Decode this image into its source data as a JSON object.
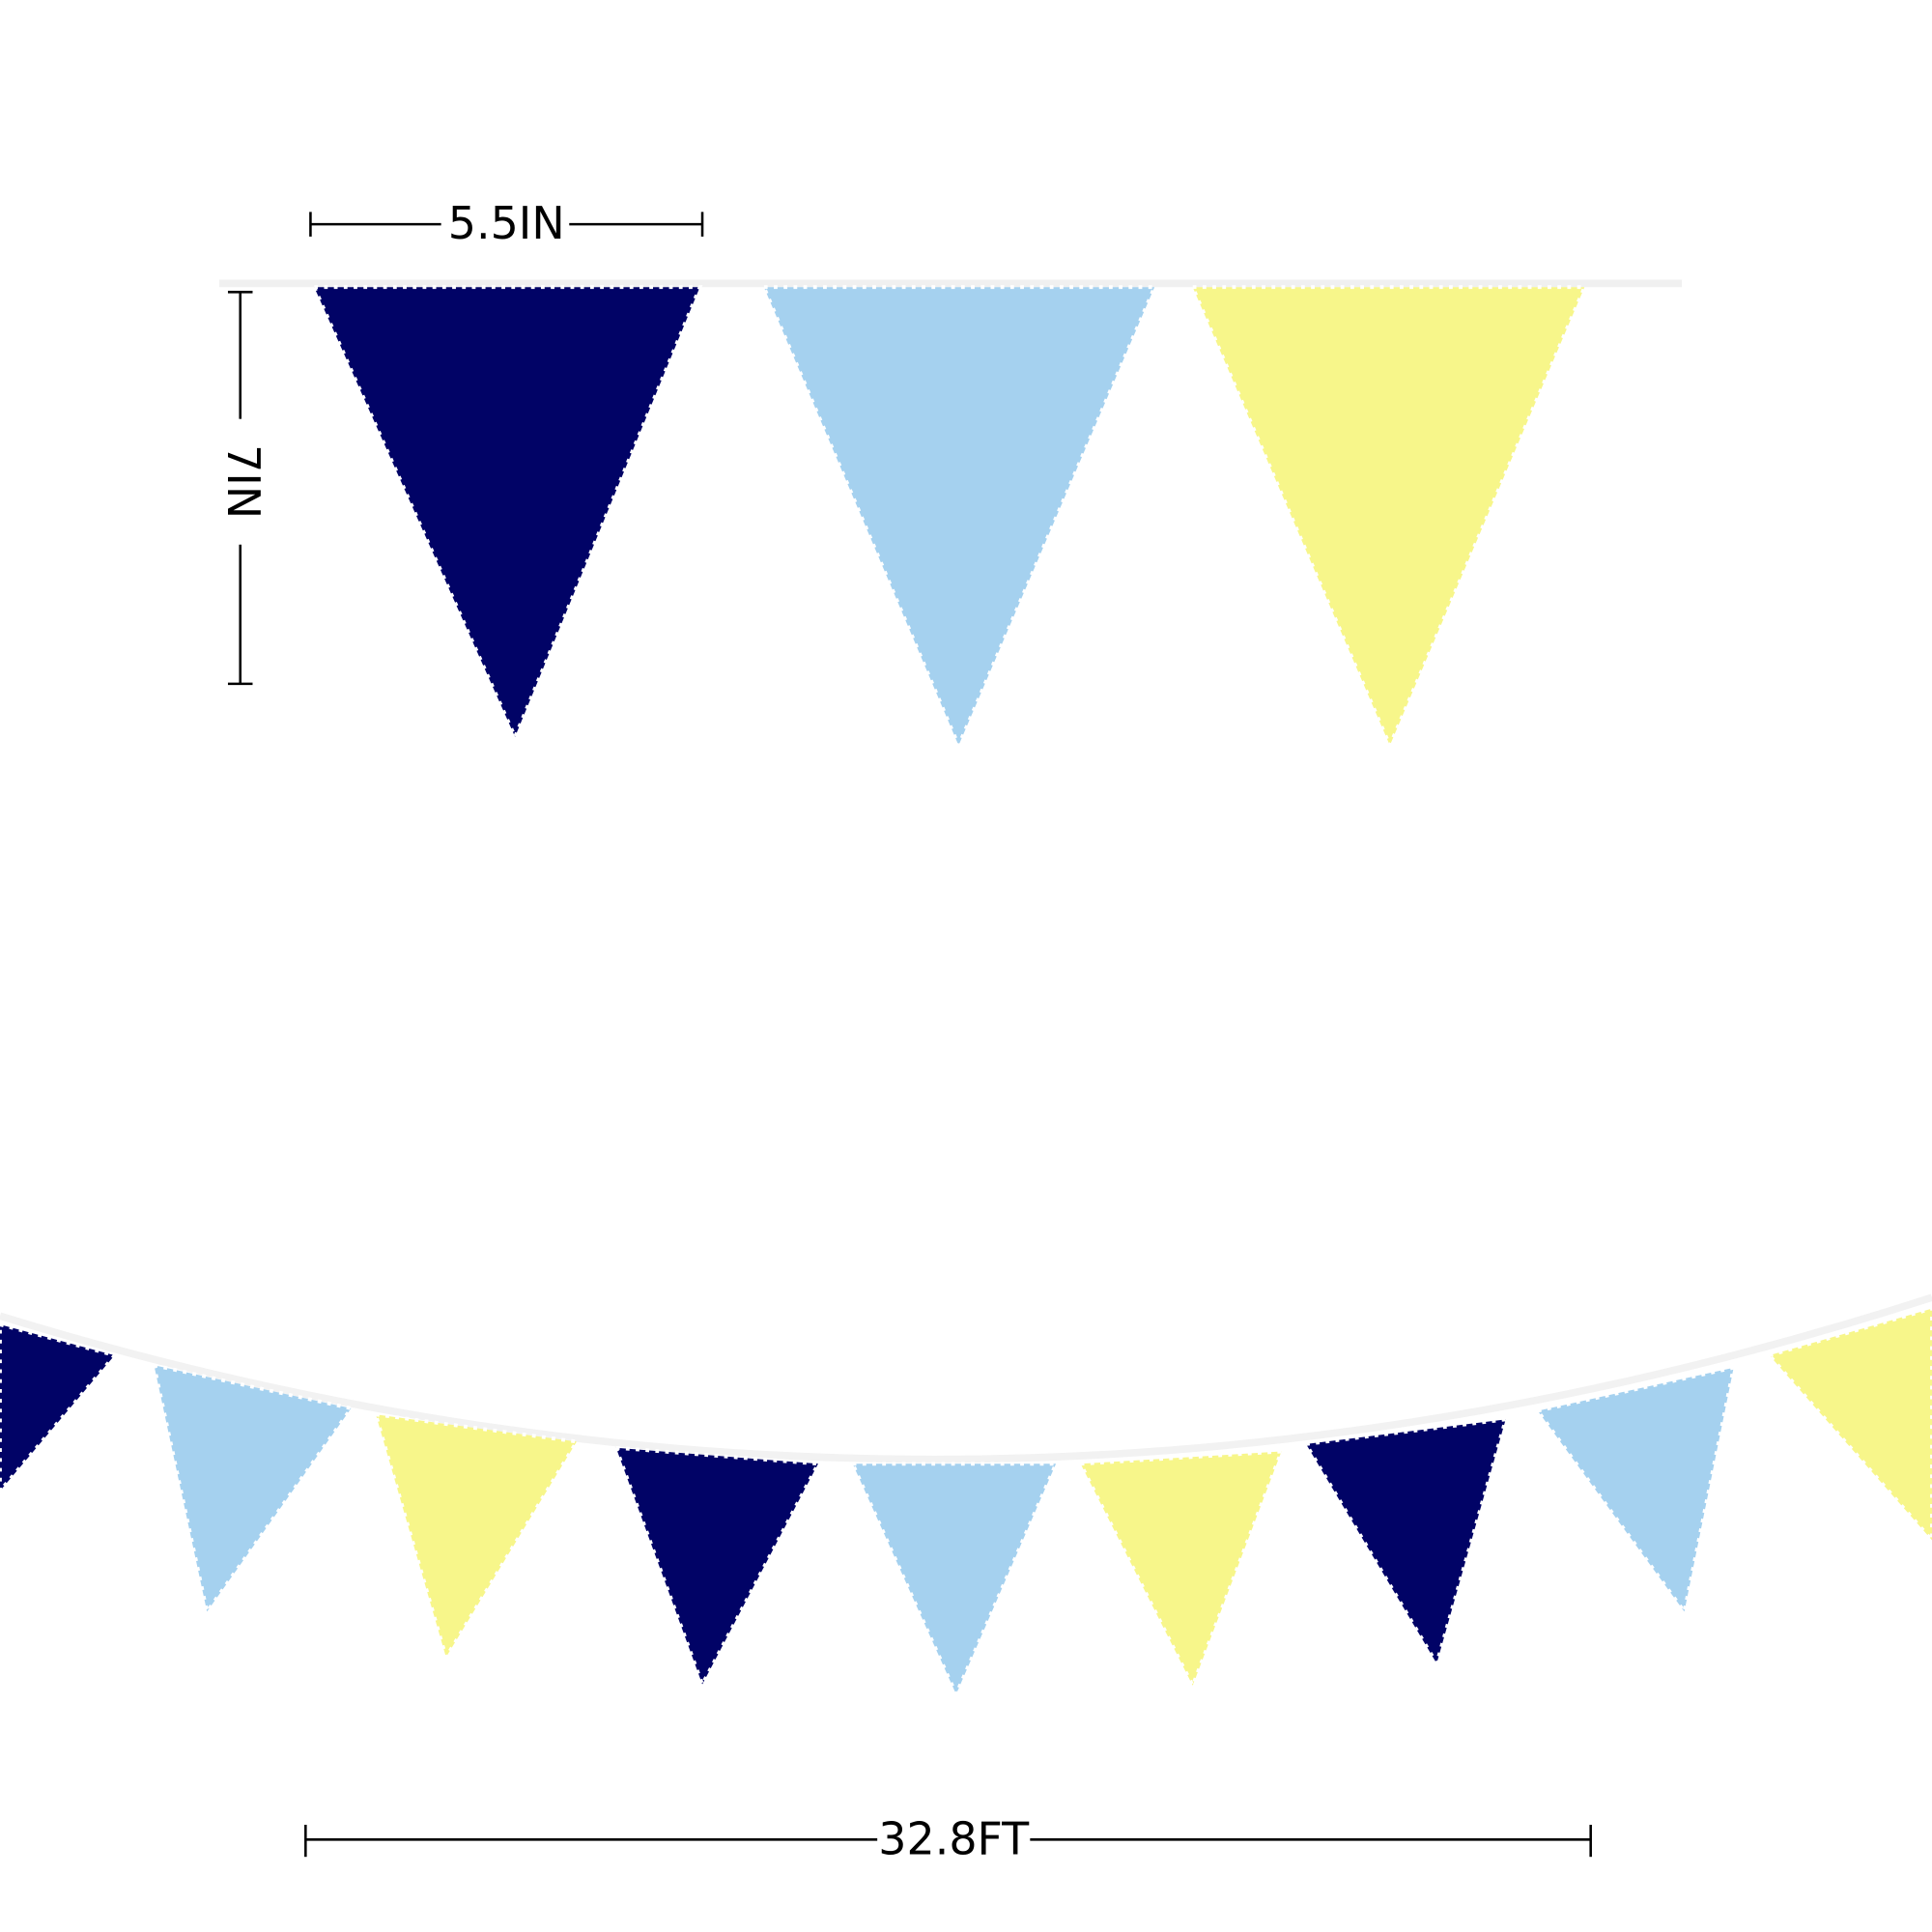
{
  "labels": {
    "width": "5.5IN",
    "height": "7IN",
    "length": "32.8FT"
  }
}
